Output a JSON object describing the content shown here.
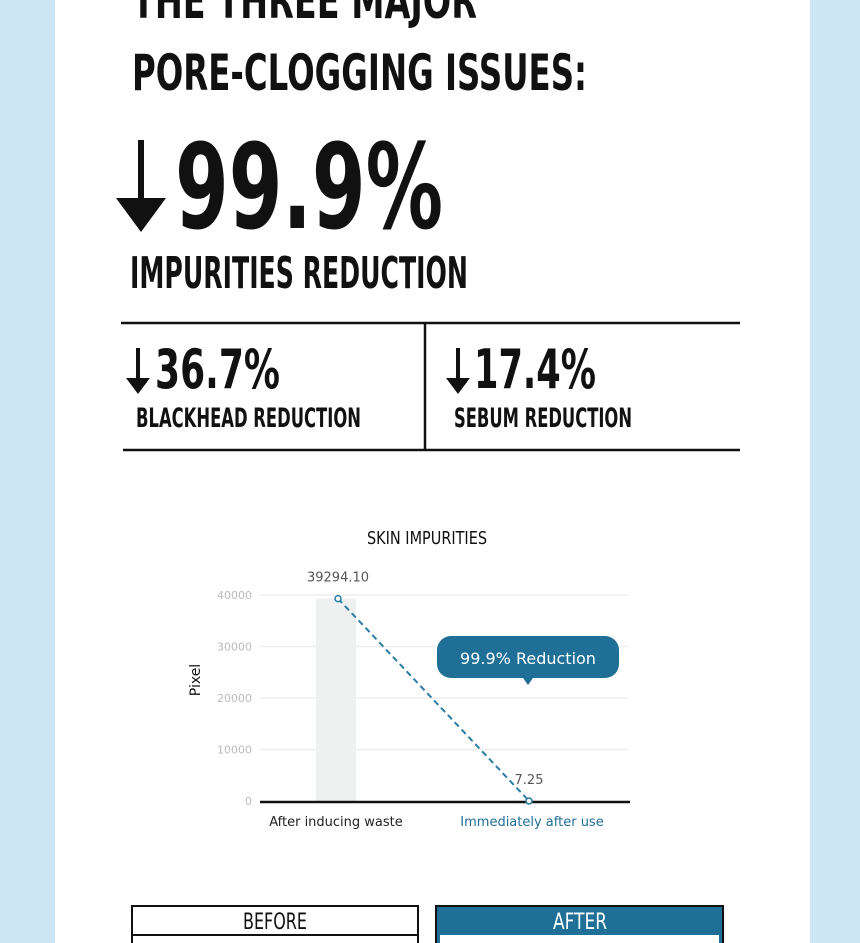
{
  "headline": {
    "line1": "THE THREE MAJOR",
    "line2": "PORE-CLOGGING ISSUES:"
  },
  "main_stat": {
    "value": "99.9%",
    "label": "IMPURITIES REDUCTION"
  },
  "stats": [
    {
      "value": "36.7%",
      "label": "BLACKHEAD REDUCTION"
    },
    {
      "value": "17.4%",
      "label": "SEBUM REDUCTION"
    }
  ],
  "chart_data": {
    "type": "bar",
    "title": "SKIN IMPURITIES",
    "y_label": "Pixel",
    "categories": [
      "After inducing waste",
      "Immediately after use"
    ],
    "values": [
      39294.1,
      7.25
    ],
    "value_labels": [
      "39294.10",
      "7.25"
    ],
    "colors": [
      "#eef1f0",
      "#2a7da3"
    ],
    "category_colors": [
      "#222222",
      "#1f6f97"
    ],
    "line_color": "#2a7da3",
    "annotation": "99.9% Reduction",
    "ylim": [
      0,
      40000
    ],
    "yticks": [
      0,
      10000,
      20000,
      30000,
      40000
    ],
    "grid": true
  },
  "comparison": {
    "before": "BEFORE",
    "after": "AFTER"
  }
}
